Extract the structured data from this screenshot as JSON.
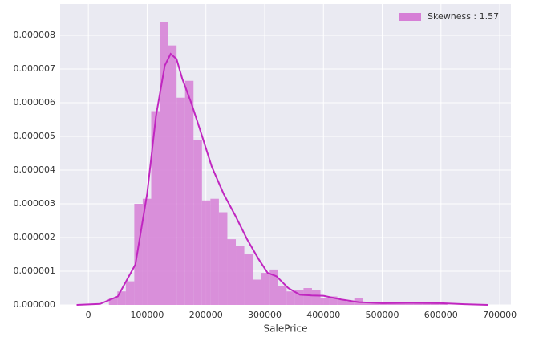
{
  "chart_data": {
    "type": "histogram",
    "xlabel": "SalePrice",
    "name": "Skewness : 1.57",
    "color": "#d67fd6",
    "grid": true,
    "legend": "upper right",
    "bins": [
      34900,
      49300,
      63700,
      78100,
      92500,
      106900,
      121300,
      135700,
      150100,
      164500,
      178900,
      193300,
      207700,
      222100,
      236500,
      250900,
      265300,
      279700,
      294100,
      308500,
      322900,
      337300,
      351700,
      366100,
      380500,
      394900,
      409300,
      423700,
      438100,
      452500,
      466900,
      481300,
      495700,
      510100,
      524500,
      538900,
      553300,
      567700,
      582100,
      596500,
      610900
    ],
    "values": [
      2e-07,
      4e-07,
      7e-07,
      3e-06,
      3.15e-06,
      5.75e-06,
      8.4e-06,
      7.7e-06,
      6.15e-06,
      6.65e-06,
      4.9e-06,
      3.1e-06,
      3.15e-06,
      2.75e-06,
      1.95e-06,
      1.75e-06,
      1.5e-06,
      7.5e-07,
      9.5e-07,
      1.05e-06,
      5.5e-07,
      4e-07,
      4.5e-07,
      5e-07,
      4.5e-07,
      2e-07,
      2.5e-07,
      1.5e-07,
      1e-07,
      2e-07,
      5e-08,
      5e-08,
      5e-08,
      5e-08,
      5e-08,
      5e-08,
      5e-08,
      5e-08,
      5e-08,
      5e-08
    ],
    "kde": {
      "color": "#c026c0",
      "x": [
        -20000,
        20000,
        50000,
        80000,
        100000,
        115000,
        130000,
        140000,
        150000,
        160000,
        175000,
        190000,
        210000,
        230000,
        250000,
        270000,
        290000,
        305000,
        320000,
        340000,
        360000,
        380000,
        400000,
        430000,
        460000,
        500000,
        550000,
        600000,
        640000,
        680000
      ],
      "values": [
        0,
        3e-08,
        2.5e-07,
        1.2e-06,
        3.3e-06,
        5.6e-06,
        7.1e-06,
        7.45e-06,
        7.3e-06,
        6.7e-06,
        6e-06,
        5.2e-06,
        4.1e-06,
        3.3e-06,
        2.65e-06,
        1.95e-06,
        1.35e-06,
        9.5e-07,
        8.5e-07,
        5e-07,
        3e-07,
        2.8e-07,
        2.7e-07,
        1.6e-07,
        8e-08,
        5e-08,
        6e-08,
        5e-08,
        2e-08,
        0
      ]
    },
    "xlim": [
      -48000,
      719000
    ],
    "ylim": [
      0,
      8.93e-06
    ],
    "xticks": [
      0,
      100000,
      200000,
      300000,
      400000,
      500000,
      600000,
      700000
    ],
    "yticks": [
      {
        "value": 0,
        "label": "0.000000"
      },
      {
        "value": 1e-06,
        "label": "0.000001"
      },
      {
        "value": 2e-06,
        "label": "0.000002"
      },
      {
        "value": 3e-06,
        "label": "0.000003"
      },
      {
        "value": 4e-06,
        "label": "0.000004"
      },
      {
        "value": 5e-06,
        "label": "0.000005"
      },
      {
        "value": 6e-06,
        "label": "0.000006"
      },
      {
        "value": 7e-06,
        "label": "0.000007"
      },
      {
        "value": 8e-06,
        "label": "0.000008"
      }
    ]
  }
}
